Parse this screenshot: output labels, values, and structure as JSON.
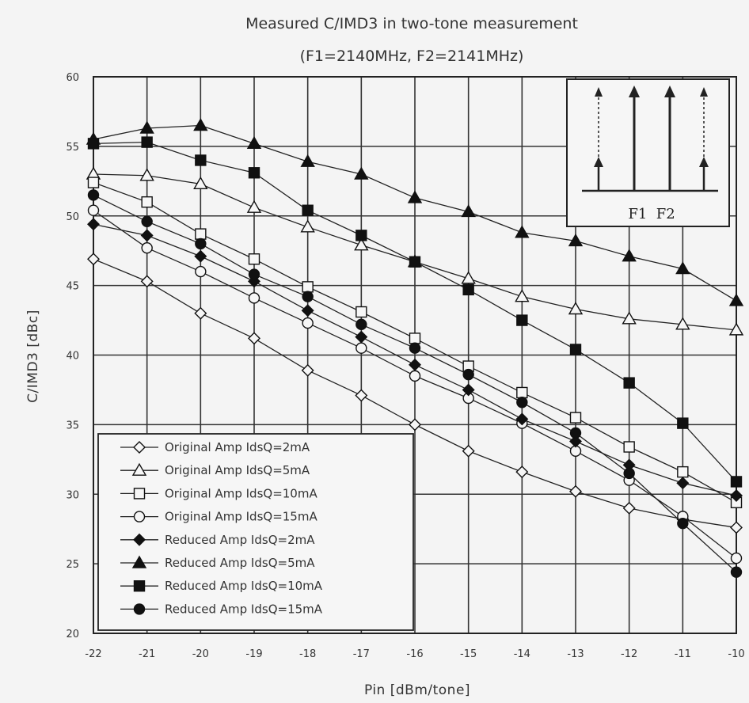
{
  "chart_data": {
    "type": "line",
    "title": "Measured C/IMD3 in two-tone measurement",
    "subtitle": "(F1=2140MHz, F2=2141MHz)",
    "xlabel": "Pin [dBm/tone]",
    "ylabel": "C/IMD3 [dBc]",
    "xlim": [
      -22,
      -10
    ],
    "ylim": [
      20,
      60
    ],
    "x": [
      -22,
      -21,
      -20,
      -19,
      -18,
      -17,
      -16,
      -15,
      -14,
      -13,
      -12,
      -11,
      -10
    ],
    "x_tick_labels": [
      "-22",
      "-21",
      "-20",
      "-19",
      "-18",
      "-17",
      "-16",
      "-15",
      "-14",
      "-13",
      "-12",
      "-11",
      "-10"
    ],
    "y_tick_labels": [
      "20",
      "25",
      "30",
      "35",
      "40",
      "45",
      "50",
      "55",
      "60"
    ],
    "grid": true,
    "legend_position": "bottom-left",
    "series": [
      {
        "name": "Original Amp IdsQ=2mA",
        "marker": "diamond-open",
        "values": [
          46.9,
          45.3,
          43.0,
          41.2,
          38.9,
          37.1,
          35.0,
          33.1,
          31.6,
          30.2,
          29.0,
          28.2,
          27.6
        ]
      },
      {
        "name": "Original Amp IdsQ=5mA",
        "marker": "triangle-open",
        "values": [
          53.0,
          52.9,
          52.3,
          50.6,
          49.2,
          47.9,
          46.7,
          45.5,
          44.2,
          43.3,
          42.6,
          42.2,
          41.8
        ]
      },
      {
        "name": "Original Amp IdsQ=10mA",
        "marker": "square-open",
        "values": [
          52.4,
          51.0,
          48.7,
          46.9,
          44.9,
          43.1,
          41.2,
          39.2,
          37.3,
          35.5,
          33.4,
          31.6,
          29.4
        ]
      },
      {
        "name": "Original Amp IdsQ=15mA",
        "marker": "circle-open",
        "values": [
          50.4,
          47.7,
          46.0,
          44.1,
          42.3,
          40.5,
          38.5,
          36.9,
          35.1,
          33.1,
          31.0,
          28.4,
          25.4
        ]
      },
      {
        "name": "Reduced Amp IdsQ=2mA",
        "marker": "diamond-filled",
        "values": [
          49.4,
          48.6,
          47.1,
          45.3,
          43.2,
          41.3,
          39.3,
          37.5,
          35.4,
          33.8,
          32.1,
          30.8,
          29.9
        ]
      },
      {
        "name": "Reduced Amp IdsQ=5mA",
        "marker": "triangle-filled",
        "values": [
          55.5,
          56.3,
          56.5,
          55.2,
          53.9,
          53.0,
          51.3,
          50.3,
          48.8,
          48.2,
          47.1,
          46.2,
          43.9
        ]
      },
      {
        "name": "Reduced Amp IdsQ=10mA",
        "marker": "square-filled",
        "values": [
          55.2,
          55.3,
          54.0,
          53.1,
          50.4,
          48.6,
          46.7,
          44.7,
          42.5,
          40.4,
          38.0,
          35.1,
          30.9
        ]
      },
      {
        "name": "Reduced Amp IdsQ=15mA",
        "marker": "circle-filled",
        "values": [
          51.5,
          49.6,
          48.0,
          45.8,
          44.2,
          42.2,
          40.5,
          38.6,
          36.6,
          34.4,
          31.5,
          27.9,
          24.4
        ]
      }
    ],
    "inset": {
      "labels": "F1  F2"
    }
  }
}
